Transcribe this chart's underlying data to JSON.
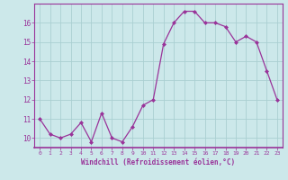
{
  "x": [
    0,
    1,
    2,
    3,
    4,
    5,
    6,
    7,
    8,
    9,
    10,
    11,
    12,
    13,
    14,
    15,
    16,
    17,
    18,
    19,
    20,
    21,
    22,
    23
  ],
  "y": [
    11.0,
    10.2,
    10.0,
    10.2,
    10.8,
    9.8,
    11.3,
    10.0,
    9.8,
    10.6,
    11.7,
    12.0,
    14.9,
    16.0,
    16.6,
    16.6,
    16.0,
    16.0,
    15.8,
    15.0,
    15.3,
    15.0,
    13.5,
    12.0
  ],
  "line_color": "#993399",
  "marker_color": "#993399",
  "bg_color": "#cce8ea",
  "grid_color": "#aacfd2",
  "xlabel": "Windchill (Refroidissement éolien,°C)",
  "xlabel_color": "#993399",
  "tick_color": "#993399",
  "spine_color": "#993399",
  "ylim": [
    9.5,
    17.0
  ],
  "xlim": [
    -0.5,
    23.5
  ],
  "yticks": [
    10,
    11,
    12,
    13,
    14,
    15,
    16
  ],
  "xticks": [
    0,
    1,
    2,
    3,
    4,
    5,
    6,
    7,
    8,
    9,
    10,
    11,
    12,
    13,
    14,
    15,
    16,
    17,
    18,
    19,
    20,
    21,
    22,
    23
  ]
}
